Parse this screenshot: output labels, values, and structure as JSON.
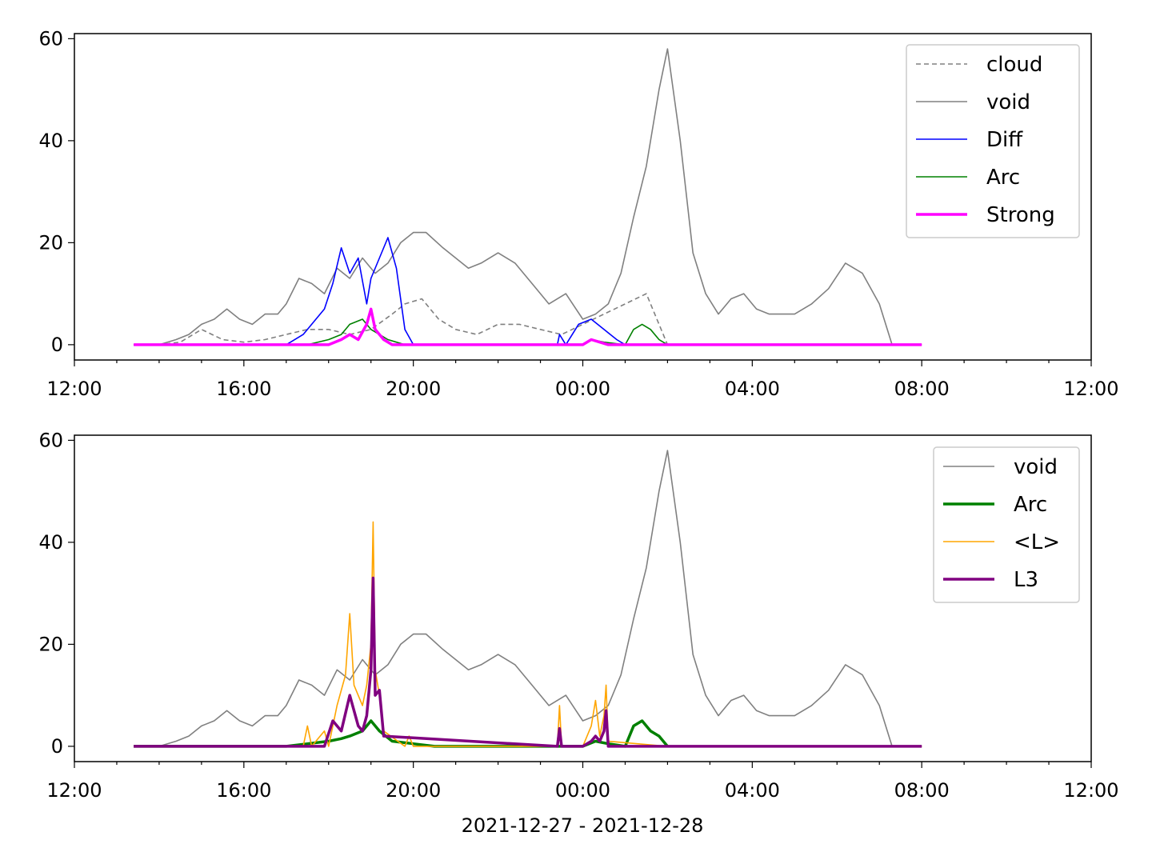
{
  "figure": {
    "xlabel": "2021-12-27 - 2021-12-28",
    "x_tick_labels": [
      "12:00",
      "16:00",
      "20:00",
      "00:00",
      "04:00",
      "08:00",
      "12:00"
    ],
    "y_tick_labels": [
      "0",
      "20",
      "40",
      "60"
    ]
  },
  "colors": {
    "cloud": "#808080",
    "void": "#808080",
    "Diff": "#0000ff",
    "Arc": "#008000",
    "Strong": "#ff00ff",
    "<L>": "#ffa500",
    "L3": "#800080"
  },
  "chart_data": [
    {
      "type": "line",
      "xlim_hours": [
        12,
        36
      ],
      "ylim": [
        -3,
        61
      ],
      "x_ticks_hours": [
        12,
        16,
        20,
        24,
        28,
        32,
        36
      ],
      "y_ticks": [
        0,
        20,
        40,
        60
      ],
      "legend_position": "top-right",
      "legend": [
        "cloud",
        "void",
        "Diff",
        "Arc",
        "Strong"
      ],
      "series": [
        {
          "name": "cloud",
          "style": "dashed",
          "x_hours": [
            13.4,
            14.0,
            14.5,
            15.0,
            15.5,
            16.0,
            16.5,
            17.0,
            17.5,
            18.0,
            18.5,
            19.0,
            19.5,
            19.8,
            20.2,
            20.6,
            21.0,
            21.5,
            22.0,
            22.5,
            23.0,
            23.5,
            24.0,
            24.5,
            25.0,
            25.5,
            26.0
          ],
          "values": [
            0,
            0,
            0.5,
            3,
            1,
            0.5,
            1,
            2,
            3,
            3,
            2,
            3,
            6,
            8,
            9,
            5,
            3,
            2,
            4,
            4,
            3,
            2,
            4,
            6,
            8,
            10,
            0
          ]
        },
        {
          "name": "void",
          "style": "solid",
          "x_hours": [
            13.4,
            14.0,
            14.4,
            14.7,
            15.0,
            15.3,
            15.6,
            15.9,
            16.2,
            16.5,
            16.8,
            17.0,
            17.3,
            17.6,
            17.9,
            18.2,
            18.5,
            18.8,
            19.1,
            19.4,
            19.7,
            20.0,
            20.3,
            20.7,
            21.0,
            21.3,
            21.6,
            22.0,
            22.4,
            22.8,
            23.2,
            23.6,
            24.0,
            24.3,
            24.6,
            24.9,
            25.2,
            25.5,
            25.8,
            26.0,
            26.3,
            26.6,
            26.9,
            27.2,
            27.5,
            27.8,
            28.1,
            28.4,
            28.7,
            29.0,
            29.4,
            29.8,
            30.2,
            30.6,
            31.0,
            31.3,
            31.6,
            32.0
          ],
          "values": [
            0,
            0,
            1,
            2,
            4,
            5,
            7,
            5,
            4,
            6,
            6,
            8,
            13,
            12,
            10,
            15,
            13,
            17,
            14,
            16,
            20,
            22,
            22,
            19,
            17,
            15,
            16,
            18,
            16,
            12,
            8,
            10,
            5,
            6,
            8,
            14,
            25,
            35,
            50,
            58,
            40,
            18,
            10,
            6,
            9,
            10,
            7,
            6,
            6,
            6,
            8,
            11,
            16,
            14,
            8,
            0,
            0,
            0
          ]
        },
        {
          "name": "Diff",
          "style": "solid",
          "x_hours": [
            13.4,
            17.0,
            17.4,
            17.6,
            17.9,
            18.1,
            18.3,
            18.5,
            18.7,
            18.9,
            19.0,
            19.2,
            19.4,
            19.6,
            19.8,
            20.0,
            23.4,
            23.45,
            23.6,
            23.9,
            24.2,
            24.5,
            24.8,
            25.0,
            26.0
          ],
          "values": [
            0,
            0,
            2,
            4,
            7,
            12,
            19,
            14,
            17,
            8,
            13,
            17,
            21,
            15,
            3,
            0,
            0,
            2,
            0,
            4,
            5,
            3,
            1,
            0,
            0
          ]
        },
        {
          "name": "Arc",
          "style": "solid",
          "x_hours": [
            13.4,
            17.5,
            18.0,
            18.3,
            18.5,
            18.8,
            19.0,
            19.2,
            19.4,
            19.6,
            19.8,
            24.0,
            24.2,
            24.5,
            25.0,
            25.2,
            25.4,
            25.6,
            25.8,
            26.0
          ],
          "values": [
            0,
            0,
            1,
            2,
            4,
            5,
            3,
            2,
            1,
            0.5,
            0,
            0,
            1,
            0.5,
            0,
            3,
            4,
            3,
            1,
            0
          ]
        },
        {
          "name": "Strong",
          "style": "thick",
          "x_hours": [
            13.4,
            18.0,
            18.3,
            18.5,
            18.7,
            18.9,
            19.0,
            19.1,
            19.3,
            19.5,
            24.0,
            24.2,
            24.4,
            24.6,
            26.0,
            32.0
          ],
          "values": [
            0,
            0,
            1,
            2,
            1,
            4,
            7,
            3,
            1,
            0,
            0,
            1,
            0.5,
            0,
            0,
            0
          ]
        }
      ]
    },
    {
      "type": "line",
      "xlim_hours": [
        12,
        36
      ],
      "ylim": [
        -3,
        61
      ],
      "x_ticks_hours": [
        12,
        16,
        20,
        24,
        28,
        32,
        36
      ],
      "y_ticks": [
        0,
        20,
        40,
        60
      ],
      "legend_position": "top-right",
      "legend": [
        "void",
        "Arc",
        "<L>",
        "L3"
      ],
      "series": [
        {
          "name": "void",
          "style": "solid",
          "x_hours": [
            13.4,
            14.0,
            14.4,
            14.7,
            15.0,
            15.3,
            15.6,
            15.9,
            16.2,
            16.5,
            16.8,
            17.0,
            17.3,
            17.6,
            17.9,
            18.2,
            18.5,
            18.8,
            19.1,
            19.4,
            19.7,
            20.0,
            20.3,
            20.7,
            21.0,
            21.3,
            21.6,
            22.0,
            22.4,
            22.8,
            23.2,
            23.6,
            24.0,
            24.3,
            24.6,
            24.9,
            25.2,
            25.5,
            25.8,
            26.0,
            26.3,
            26.6,
            26.9,
            27.2,
            27.5,
            27.8,
            28.1,
            28.4,
            28.7,
            29.0,
            29.4,
            29.8,
            30.2,
            30.6,
            31.0,
            31.3,
            31.6,
            32.0
          ],
          "values": [
            0,
            0,
            1,
            2,
            4,
            5,
            7,
            5,
            4,
            6,
            6,
            8,
            13,
            12,
            10,
            15,
            13,
            17,
            14,
            16,
            20,
            22,
            22,
            19,
            17,
            15,
            16,
            18,
            16,
            12,
            8,
            10,
            5,
            6,
            8,
            14,
            25,
            35,
            50,
            58,
            40,
            18,
            10,
            6,
            9,
            10,
            7,
            6,
            6,
            6,
            8,
            11,
            16,
            14,
            8,
            0,
            0,
            0
          ]
        },
        {
          "name": "Arc",
          "style": "thick",
          "x_hours": [
            13.4,
            17.0,
            17.5,
            18.0,
            18.3,
            18.5,
            18.8,
            19.0,
            19.2,
            19.5,
            20.0,
            20.5,
            24.0,
            24.3,
            24.6,
            25.0,
            25.2,
            25.4,
            25.6,
            25.8,
            26.0
          ],
          "values": [
            0,
            0,
            0.5,
            1,
            1.5,
            2,
            3,
            5,
            3,
            1,
            0.5,
            0,
            0,
            1,
            0.5,
            0,
            4,
            5,
            3,
            2,
            0
          ]
        },
        {
          "name": "<L>",
          "style": "solid",
          "x_hours": [
            13.4,
            17.4,
            17.5,
            17.6,
            17.9,
            18.0,
            18.2,
            18.4,
            18.5,
            18.6,
            18.8,
            18.9,
            19.0,
            19.05,
            19.1,
            19.2,
            19.3,
            19.8,
            19.9,
            20.0,
            23.4,
            23.45,
            23.5,
            24.0,
            24.2,
            24.3,
            24.4,
            24.5,
            24.55,
            24.6,
            26.0,
            32.0
          ],
          "values": [
            0,
            0,
            4,
            0,
            3,
            0,
            8,
            14,
            26,
            12,
            8,
            12,
            20,
            44,
            15,
            10,
            3,
            0,
            2,
            0,
            0,
            8,
            0,
            0,
            4,
            9,
            2,
            6,
            12,
            1,
            0,
            0
          ]
        },
        {
          "name": "L3",
          "style": "thick",
          "x_hours": [
            13.4,
            17.9,
            18.1,
            18.3,
            18.5,
            18.7,
            18.8,
            18.9,
            19.0,
            19.05,
            19.1,
            19.2,
            19.3,
            23.4,
            23.45,
            23.5,
            24.0,
            24.2,
            24.3,
            24.4,
            24.5,
            24.55,
            24.6,
            32.0
          ],
          "values": [
            0,
            0,
            5,
            3,
            10,
            4,
            3,
            6,
            15,
            33,
            10,
            11,
            2,
            0,
            3.5,
            0,
            0,
            1,
            2,
            1,
            3,
            7,
            0,
            0
          ]
        }
      ]
    }
  ]
}
